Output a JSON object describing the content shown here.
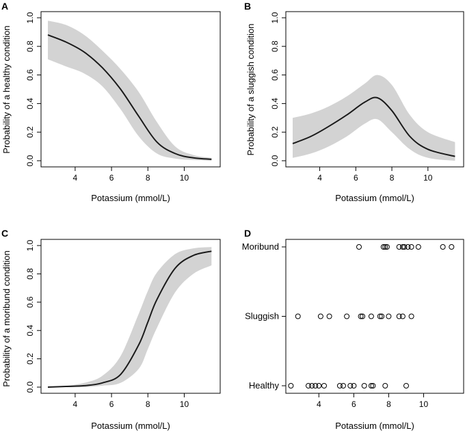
{
  "colors": {
    "band": "#d3d3d3",
    "curve": "#1a1a1a",
    "axis": "#000000"
  },
  "chart_data": [
    {
      "type": "line",
      "panel": "A",
      "xlabel": "Potassium (mmol/L)",
      "ylabel": "Probability of a healthy condition",
      "xlim": [
        2.5,
        11.6
      ],
      "ylim": [
        0,
        1
      ],
      "xticks": [
        4,
        6,
        8,
        10
      ],
      "yticks": [
        0.0,
        0.2,
        0.4,
        0.6,
        0.8,
        1.0
      ],
      "ytick_labels": [
        "0.0",
        "0.2",
        "0.4",
        "0.6",
        "0.8",
        "1.0"
      ],
      "series": [
        {
          "name": "estimate",
          "x": [
            2.5,
            3.5,
            4.5,
            5.5,
            6.5,
            7.5,
            8.5,
            9.5,
            10.5,
            11.5
          ],
          "y": [
            0.88,
            0.83,
            0.76,
            0.65,
            0.5,
            0.31,
            0.13,
            0.05,
            0.02,
            0.01
          ]
        },
        {
          "name": "upper",
          "x": [
            2.5,
            3.5,
            4.5,
            5.5,
            6.5,
            7.5,
            8.5,
            9.5,
            10.5,
            11.5
          ],
          "y": [
            0.98,
            0.95,
            0.88,
            0.77,
            0.64,
            0.48,
            0.27,
            0.1,
            0.04,
            0.02
          ]
        },
        {
          "name": "lower",
          "x": [
            2.5,
            3.5,
            4.5,
            5.5,
            6.5,
            7.5,
            8.5,
            9.5,
            10.5,
            11.5
          ],
          "y": [
            0.71,
            0.66,
            0.61,
            0.52,
            0.36,
            0.17,
            0.05,
            0.015,
            0.005,
            0.0
          ]
        }
      ]
    },
    {
      "type": "line",
      "panel": "B",
      "xlabel": "Potassium (mmol/L)",
      "ylabel": "Probability of a sluggish condition",
      "xlim": [
        2.5,
        11.6
      ],
      "ylim": [
        0,
        1
      ],
      "xticks": [
        4,
        6,
        8,
        10
      ],
      "yticks": [
        0.0,
        0.2,
        0.4,
        0.6,
        0.8,
        1.0
      ],
      "ytick_labels": [
        "0.0",
        "0.2",
        "0.4",
        "0.6",
        "0.8",
        "1.0"
      ],
      "series": [
        {
          "name": "estimate",
          "x": [
            2.5,
            3.5,
            4.5,
            5.5,
            6.5,
            7.2,
            8.0,
            9.0,
            10.0,
            11.5
          ],
          "y": [
            0.12,
            0.17,
            0.24,
            0.32,
            0.41,
            0.44,
            0.35,
            0.17,
            0.08,
            0.03
          ]
        },
        {
          "name": "upper",
          "x": [
            2.5,
            3.5,
            4.5,
            5.5,
            6.5,
            7.2,
            8.0,
            9.0,
            10.0,
            11.5
          ],
          "y": [
            0.3,
            0.33,
            0.38,
            0.45,
            0.54,
            0.6,
            0.53,
            0.32,
            0.2,
            0.13
          ]
        },
        {
          "name": "lower",
          "x": [
            2.5,
            3.5,
            4.5,
            5.5,
            6.5,
            7.2,
            8.0,
            9.0,
            10.0,
            11.5
          ],
          "y": [
            0.02,
            0.05,
            0.1,
            0.17,
            0.26,
            0.29,
            0.2,
            0.08,
            0.02,
            0.0
          ]
        }
      ]
    },
    {
      "type": "line",
      "panel": "C",
      "xlabel": "Potassium (mmol/L)",
      "ylabel": "Probability of a moribund condition",
      "xlim": [
        2.5,
        11.6
      ],
      "ylim": [
        0,
        1
      ],
      "xticks": [
        4,
        6,
        8,
        10
      ],
      "yticks": [
        0.0,
        0.2,
        0.4,
        0.6,
        0.8,
        1.0
      ],
      "ytick_labels": [
        "0.0",
        "0.2",
        "0.4",
        "0.6",
        "0.8",
        "1.0"
      ],
      "series": [
        {
          "name": "estimate",
          "x": [
            2.5,
            3.5,
            4.5,
            5.5,
            6.5,
            7.5,
            8.0,
            8.5,
            9.5,
            10.5,
            11.5
          ],
          "y": [
            0.0,
            0.005,
            0.01,
            0.03,
            0.09,
            0.3,
            0.46,
            0.62,
            0.84,
            0.93,
            0.96
          ]
        },
        {
          "name": "upper",
          "x": [
            2.5,
            3.5,
            4.5,
            5.5,
            6.5,
            7.5,
            8.0,
            8.5,
            9.5,
            10.5,
            11.5
          ],
          "y": [
            0.005,
            0.01,
            0.03,
            0.08,
            0.22,
            0.52,
            0.68,
            0.81,
            0.94,
            0.98,
            0.99
          ]
        },
        {
          "name": "lower",
          "x": [
            2.5,
            3.5,
            4.5,
            5.5,
            6.5,
            7.5,
            8.0,
            8.5,
            9.5,
            10.5,
            11.5
          ],
          "y": [
            0.0,
            0.0,
            0.0,
            0.01,
            0.03,
            0.13,
            0.27,
            0.42,
            0.67,
            0.8,
            0.86
          ]
        }
      ]
    },
    {
      "type": "scatter",
      "panel": "D",
      "xlabel": "Potassium (mmol/L)",
      "ylabel": "",
      "xlim": [
        2.5,
        11.9
      ],
      "xticks": [
        4,
        6,
        8,
        10
      ],
      "categories": [
        "Healthy",
        "Sluggish",
        "Moribund"
      ],
      "points": [
        {
          "category": "Moribund",
          "x": [
            6.3,
            7.7,
            7.8,
            7.9,
            8.6,
            8.8,
            8.9,
            9.1,
            9.3,
            9.7,
            11.1,
            11.6
          ]
        },
        {
          "category": "Sluggish",
          "x": [
            2.8,
            4.1,
            4.6,
            5.6,
            6.4,
            6.5,
            7.0,
            7.5,
            7.6,
            8.0,
            8.6,
            8.8,
            9.3
          ]
        },
        {
          "category": "Healthy",
          "x": [
            2.4,
            3.4,
            3.6,
            3.8,
            4.0,
            4.3,
            5.2,
            5.4,
            5.8,
            6.0,
            6.6,
            7.0,
            7.1,
            7.8,
            9.0
          ]
        }
      ]
    }
  ]
}
